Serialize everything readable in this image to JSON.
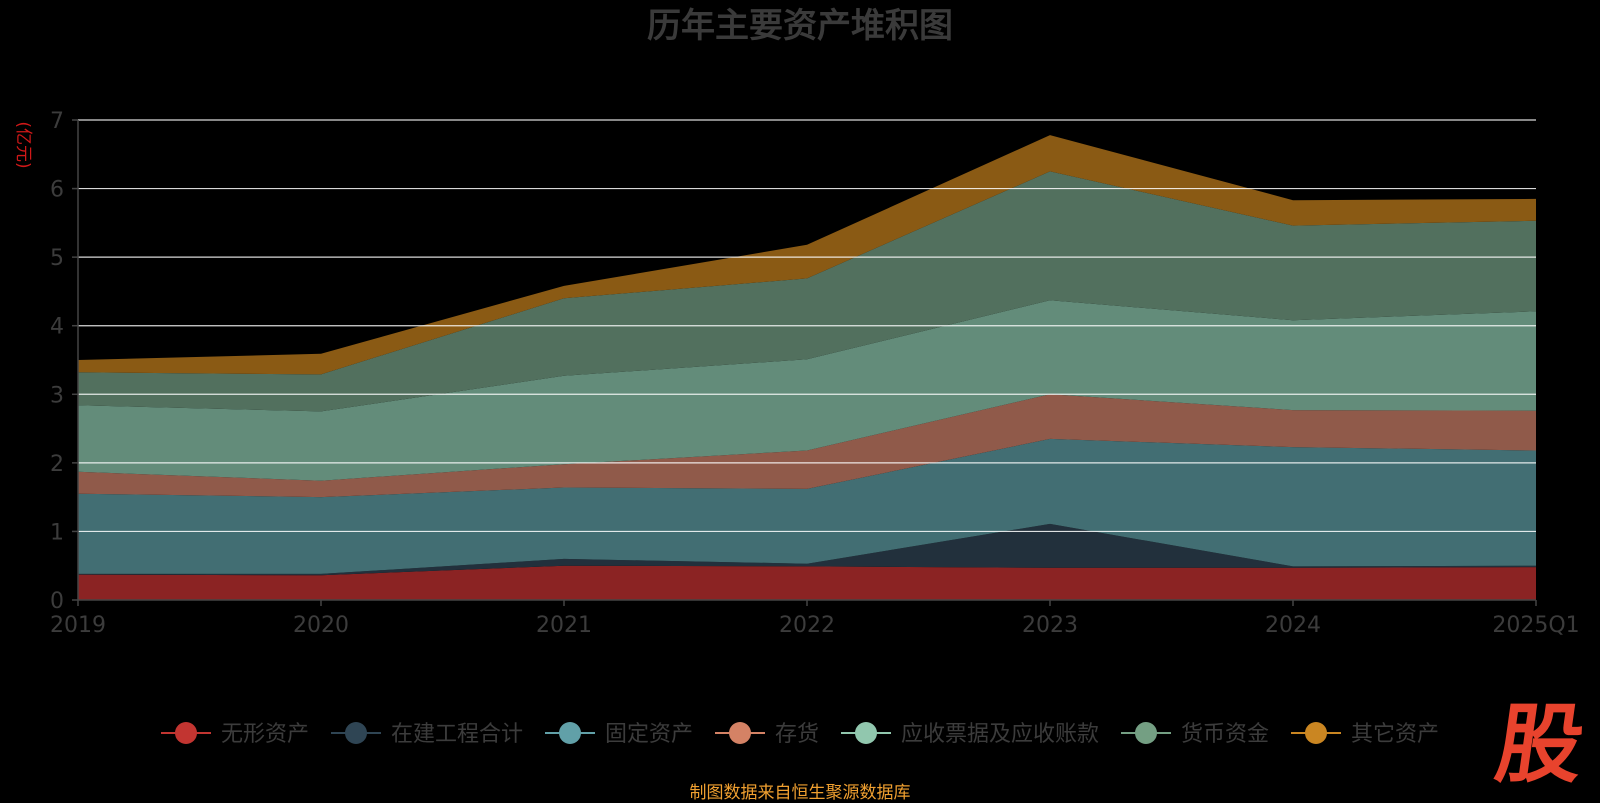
{
  "chart_data": {
    "type": "area",
    "stacked": true,
    "title": "历年主要资产堆积图",
    "ylabel": "(亿元)",
    "ylim": [
      0,
      7
    ],
    "yticks": [
      0,
      1,
      2,
      3,
      4,
      5,
      6,
      7
    ],
    "grid": true,
    "legend_position": "bottom",
    "categories": [
      "2019",
      "2020",
      "2021",
      "2022",
      "2023",
      "2024",
      "2025Q1"
    ],
    "series": [
      {
        "name": "无形资产",
        "color": "#8b2323",
        "legend_color": "#c23531",
        "values": [
          0.37,
          0.36,
          0.5,
          0.49,
          0.47,
          0.47,
          0.48
        ]
      },
      {
        "name": "在建工程合计",
        "color": "#22303c",
        "legend_color": "#2f4554",
        "values": [
          0.01,
          0.02,
          0.1,
          0.04,
          0.64,
          0.02,
          0.02
        ]
      },
      {
        "name": "固定资产",
        "color": "#426e73",
        "legend_color": "#61a0a8",
        "values": [
          1.17,
          1.12,
          1.04,
          1.09,
          1.24,
          1.74,
          1.68
        ]
      },
      {
        "name": "存货",
        "color": "#905a4a",
        "legend_color": "#d48265",
        "values": [
          0.32,
          0.24,
          0.34,
          0.56,
          0.65,
          0.54,
          0.58
        ]
      },
      {
        "name": "应收票据及应收账款",
        "color": "#638c7a",
        "legend_color": "#91c7ae",
        "values": [
          0.97,
          1.01,
          1.29,
          1.33,
          1.37,
          1.31,
          1.45
        ]
      },
      {
        "name": "货币资金",
        "color": "#52705e",
        "legend_color": "#749f83",
        "values": [
          0.48,
          0.54,
          1.13,
          1.18,
          1.88,
          1.38,
          1.32
        ]
      },
      {
        "name": "其它资产",
        "color": "#8a5a14",
        "legend_color": "#ca8622",
        "values": [
          0.18,
          0.3,
          0.18,
          0.49,
          0.53,
          0.37,
          0.32
        ]
      }
    ]
  },
  "footer": "制图数据来自恒生聚源数据库",
  "logo_text": "股"
}
